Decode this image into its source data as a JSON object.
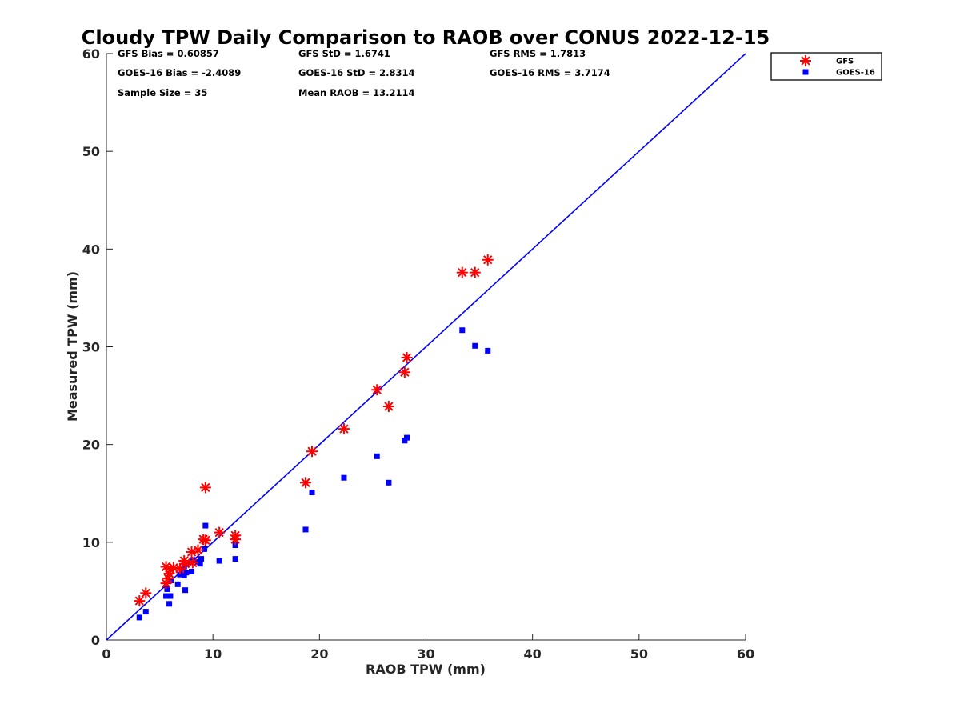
{
  "chart_data": {
    "type": "scatter",
    "title": "Cloudy TPW Daily Comparison to RAOB over CONUS 2022-12-15",
    "xlabel": "RAOB TPW (mm)",
    "ylabel": "Measured TPW (mm)",
    "xlim": [
      0,
      60
    ],
    "ylim": [
      0,
      60
    ],
    "xticks": [
      "0",
      "10",
      "20",
      "30",
      "40",
      "50",
      "60"
    ],
    "yticks": [
      "0",
      "10",
      "20",
      "30",
      "40",
      "50",
      "60"
    ],
    "grid": false,
    "legend_position": "top-right, outside plot",
    "reference_line": {
      "type": "one-to-one",
      "from": [
        0,
        0
      ],
      "to": [
        60,
        60
      ],
      "color": "#0000ff"
    },
    "stats": [
      [
        "GFS Bias = 0.60857",
        "GFS StD = 1.6741",
        "GFS RMS = 1.7813"
      ],
      [
        "GOES-16 Bias = -2.4089",
        "GOES-16 StD = 2.8314",
        "GOES-16 RMS = 3.7174"
      ],
      [
        "Sample Size = 35",
        "Mean RAOB = 13.2114"
      ]
    ],
    "series": [
      {
        "name": "GFS",
        "marker": "asterisk",
        "color": "#ff0000",
        "points": [
          [
            3.1,
            4.0
          ],
          [
            3.7,
            4.8
          ],
          [
            5.6,
            5.8
          ],
          [
            5.6,
            7.5
          ],
          [
            5.8,
            6.3
          ],
          [
            5.9,
            6.8
          ],
          [
            6.0,
            7.2
          ],
          [
            6.3,
            7.4
          ],
          [
            6.9,
            7.3
          ],
          [
            7.3,
            8.1
          ],
          [
            7.4,
            7.8
          ],
          [
            8.0,
            9.0
          ],
          [
            8.1,
            7.9
          ],
          [
            8.6,
            9.2
          ],
          [
            9.1,
            10.3
          ],
          [
            9.3,
            10.2
          ],
          [
            9.3,
            15.6
          ],
          [
            10.6,
            11.0
          ],
          [
            12.1,
            10.7
          ],
          [
            12.1,
            10.3
          ],
          [
            18.7,
            16.1
          ],
          [
            19.3,
            19.3
          ],
          [
            22.3,
            21.6
          ],
          [
            25.4,
            25.6
          ],
          [
            26.5,
            23.9
          ],
          [
            28.0,
            27.4
          ],
          [
            28.2,
            28.9
          ],
          [
            33.4,
            37.6
          ],
          [
            34.6,
            37.6
          ],
          [
            35.8,
            38.9
          ]
        ]
      },
      {
        "name": "GOES-16",
        "marker": "square",
        "color": "#0000ff",
        "points": [
          [
            3.1,
            2.3
          ],
          [
            3.7,
            2.9
          ],
          [
            5.6,
            4.5
          ],
          [
            5.7,
            5.2
          ],
          [
            5.9,
            3.7
          ],
          [
            6.0,
            4.5
          ],
          [
            6.1,
            6.1
          ],
          [
            6.7,
            5.7
          ],
          [
            6.9,
            6.7
          ],
          [
            7.3,
            6.6
          ],
          [
            7.3,
            7.5
          ],
          [
            7.4,
            5.1
          ],
          [
            7.5,
            6.9
          ],
          [
            8.0,
            7.0
          ],
          [
            8.1,
            8.2
          ],
          [
            8.6,
            8.0
          ],
          [
            8.8,
            7.8
          ],
          [
            8.9,
            8.3
          ],
          [
            9.2,
            9.3
          ],
          [
            9.3,
            11.7
          ],
          [
            10.6,
            8.1
          ],
          [
            12.1,
            9.7
          ],
          [
            12.1,
            8.3
          ],
          [
            18.7,
            11.3
          ],
          [
            19.3,
            15.1
          ],
          [
            22.3,
            16.6
          ],
          [
            25.4,
            18.8
          ],
          [
            26.5,
            16.1
          ],
          [
            28.0,
            20.4
          ],
          [
            28.2,
            20.7
          ],
          [
            33.4,
            31.7
          ],
          [
            34.6,
            30.1
          ],
          [
            35.8,
            29.6
          ]
        ]
      }
    ]
  }
}
